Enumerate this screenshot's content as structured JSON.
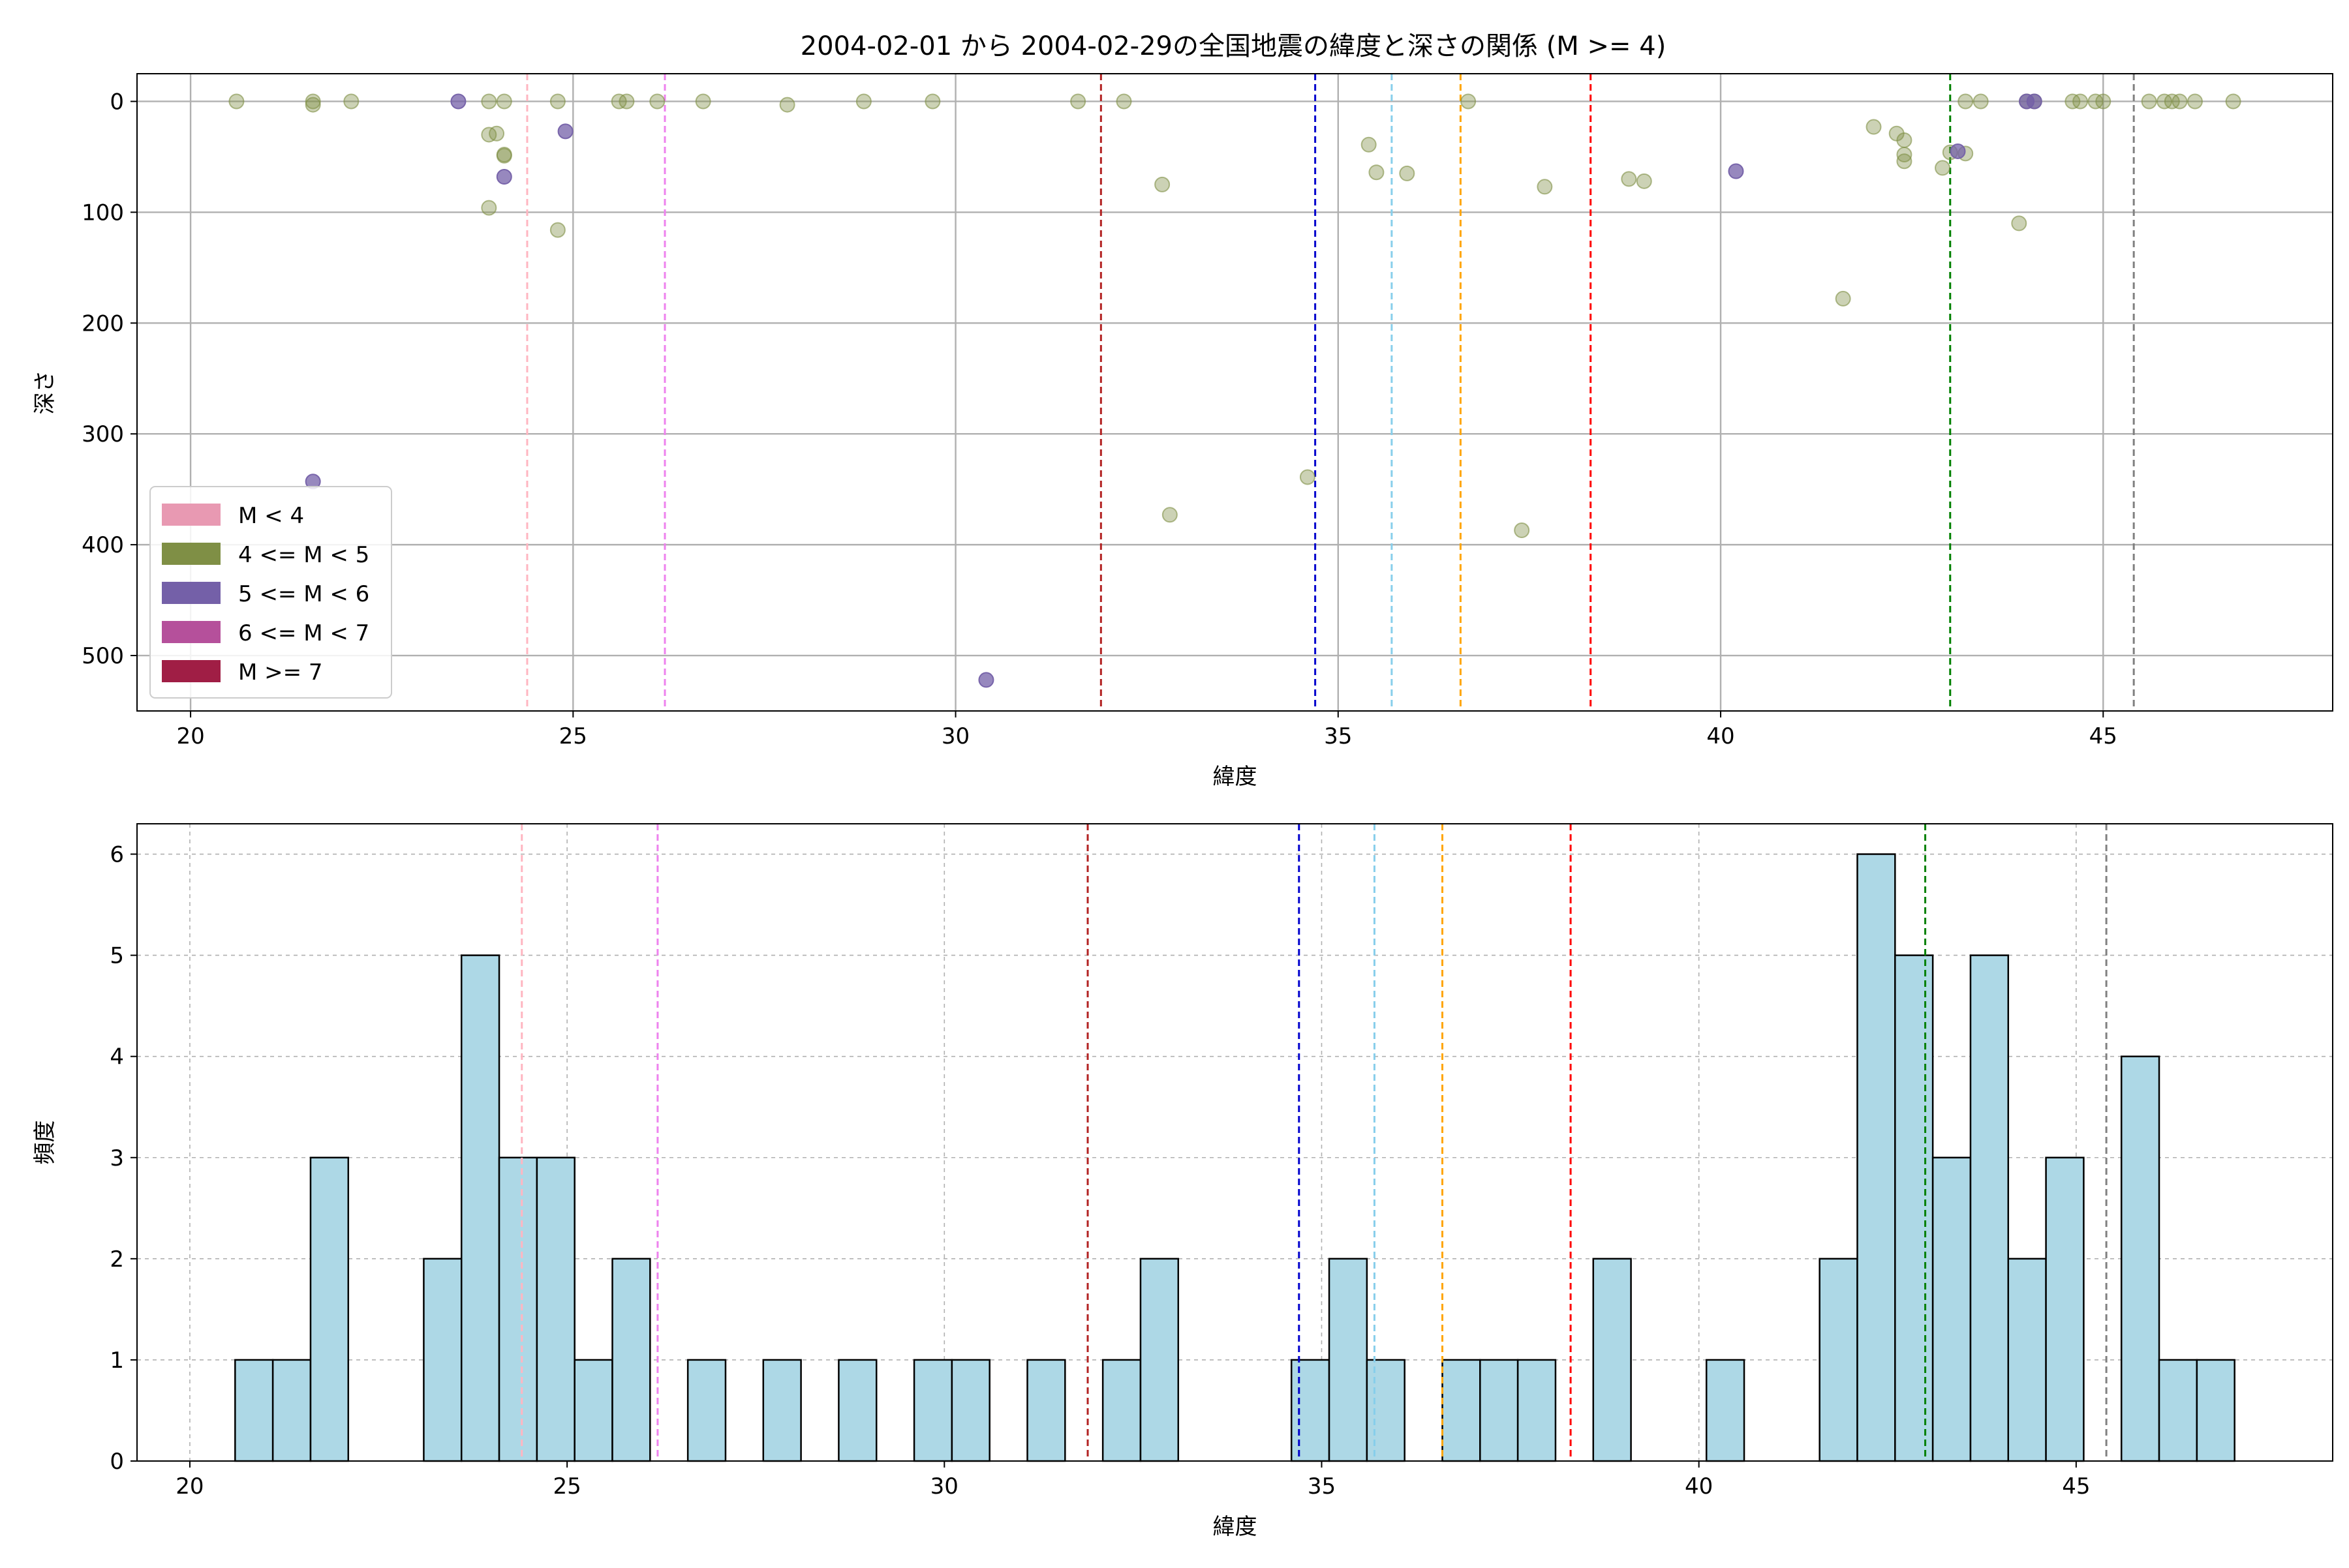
{
  "title": "2004-02-01 から 2004-02-29の全国地震の緯度と深さの関係 (M >= 4)",
  "chart_data": [
    {
      "type": "scatter",
      "title": "2004-02-01 から 2004-02-29の全国地震の緯度と深さの関係 (M >= 4)",
      "xlabel": "緯度",
      "ylabel": "深さ",
      "xlim": [
        19.3,
        48.0
      ],
      "ylim": [
        550,
        -25
      ],
      "y_inverted": true,
      "xticks": [
        20,
        25,
        30,
        35,
        40,
        45
      ],
      "yticks": [
        0,
        100,
        200,
        300,
        400,
        500
      ],
      "grid": true,
      "legend": {
        "placement": "lower-left",
        "entries": [
          {
            "label": "M < 4",
            "color": "#e899b2"
          },
          {
            "label": "4 <= M < 5",
            "color": "#7f8f45"
          },
          {
            "label": "5 <= M < 6",
            "color": "#7460a8"
          },
          {
            "label": "6 <= M < 7",
            "color": "#b5509b"
          },
          {
            "label": "M >= 7",
            "color": "#a01e45"
          }
        ]
      },
      "series": [
        {
          "label": "4 <= M < 5",
          "color": "#7f8f45",
          "alpha": 0.4,
          "points": [
            [
              20.6,
              0
            ],
            [
              21.6,
              0
            ],
            [
              21.6,
              3
            ],
            [
              22.1,
              0
            ],
            [
              23.9,
              0
            ],
            [
              24.1,
              0
            ],
            [
              23.9,
              30
            ],
            [
              24.0,
              29
            ],
            [
              24.1,
              48
            ],
            [
              24.1,
              49
            ],
            [
              23.9,
              96
            ],
            [
              24.8,
              0
            ],
            [
              24.8,
              116
            ],
            [
              25.6,
              0
            ],
            [
              25.7,
              0
            ],
            [
              26.1,
              0
            ],
            [
              26.7,
              0
            ],
            [
              27.8,
              3
            ],
            [
              28.8,
              0
            ],
            [
              29.7,
              0
            ],
            [
              31.6,
              0
            ],
            [
              32.2,
              0
            ],
            [
              32.7,
              75
            ],
            [
              32.8,
              373
            ],
            [
              34.6,
              339
            ],
            [
              35.4,
              39
            ],
            [
              35.5,
              64
            ],
            [
              35.9,
              65
            ],
            [
              36.7,
              0
            ],
            [
              37.4,
              387
            ],
            [
              37.7,
              77
            ],
            [
              38.8,
              70
            ],
            [
              39.0,
              72
            ],
            [
              41.6,
              178
            ],
            [
              42.0,
              23
            ],
            [
              42.3,
              29
            ],
            [
              42.4,
              35
            ],
            [
              42.4,
              48
            ],
            [
              42.4,
              54
            ],
            [
              42.9,
              60
            ],
            [
              43.0,
              46
            ],
            [
              43.2,
              47
            ],
            [
              43.2,
              0
            ],
            [
              43.4,
              0
            ],
            [
              43.9,
              110
            ],
            [
              44.0,
              0
            ],
            [
              44.1,
              0
            ],
            [
              44.6,
              0
            ],
            [
              44.7,
              0
            ],
            [
              44.9,
              0
            ],
            [
              45.0,
              0
            ],
            [
              45.6,
              0
            ],
            [
              45.8,
              0
            ],
            [
              45.9,
              0
            ],
            [
              46.0,
              0
            ],
            [
              46.2,
              0
            ],
            [
              46.7,
              0
            ]
          ]
        },
        {
          "label": "5 <= M < 6",
          "color": "#7460a8",
          "alpha": 0.75,
          "points": [
            [
              21.6,
              343
            ],
            [
              23.5,
              0
            ],
            [
              24.1,
              68
            ],
            [
              24.9,
              27
            ],
            [
              30.4,
              522
            ],
            [
              40.2,
              63
            ],
            [
              43.1,
              45
            ],
            [
              44.0,
              0
            ],
            [
              44.1,
              0
            ]
          ]
        }
      ],
      "vlines": [
        {
          "x": 24.4,
          "color": "#ffb6c1"
        },
        {
          "x": 26.2,
          "color": "#ee82ee"
        },
        {
          "x": 31.9,
          "color": "#b22222"
        },
        {
          "x": 34.7,
          "color": "#0000cd"
        },
        {
          "x": 35.7,
          "color": "#87ceeb"
        },
        {
          "x": 36.6,
          "color": "#ffa500"
        },
        {
          "x": 38.3,
          "color": "#ff0000"
        },
        {
          "x": 43.0,
          "color": "#008000"
        },
        {
          "x": 45.4,
          "color": "#808080"
        }
      ]
    },
    {
      "type": "bar",
      "xlabel": "緯度",
      "ylabel": "頻度",
      "xlim": [
        19.3,
        48.4
      ],
      "ylim": [
        0,
        6.3
      ],
      "xticks": [
        20,
        25,
        30,
        35,
        40,
        45
      ],
      "yticks": [
        0,
        1,
        2,
        3,
        4,
        5,
        6
      ],
      "grid": true,
      "bar_color": "#add8e6",
      "bin_width": 0.5,
      "bins": [
        [
          20.6,
          1
        ],
        [
          21.1,
          1
        ],
        [
          21.6,
          3
        ],
        [
          23.1,
          2
        ],
        [
          23.6,
          5
        ],
        [
          24.1,
          3
        ],
        [
          24.6,
          3
        ],
        [
          25.1,
          1
        ],
        [
          25.6,
          2
        ],
        [
          26.6,
          1
        ],
        [
          27.6,
          1
        ],
        [
          28.6,
          1
        ],
        [
          29.6,
          1
        ],
        [
          30.1,
          1
        ],
        [
          31.1,
          1
        ],
        [
          32.1,
          1
        ],
        [
          32.6,
          2
        ],
        [
          34.6,
          1
        ],
        [
          35.1,
          2
        ],
        [
          35.6,
          1
        ],
        [
          36.6,
          1
        ],
        [
          37.1,
          1
        ],
        [
          37.6,
          1
        ],
        [
          38.6,
          2
        ],
        [
          40.1,
          1
        ],
        [
          41.6,
          2
        ],
        [
          42.1,
          6
        ],
        [
          42.6,
          5
        ],
        [
          43.1,
          3
        ],
        [
          43.6,
          5
        ],
        [
          44.1,
          2
        ],
        [
          44.6,
          3
        ],
        [
          45.6,
          4
        ],
        [
          46.1,
          1
        ],
        [
          46.6,
          1
        ]
      ],
      "vlines": [
        {
          "x": 24.4,
          "color": "#ffb6c1"
        },
        {
          "x": 26.2,
          "color": "#ee82ee"
        },
        {
          "x": 31.9,
          "color": "#b22222"
        },
        {
          "x": 34.7,
          "color": "#0000cd"
        },
        {
          "x": 35.7,
          "color": "#87ceeb"
        },
        {
          "x": 36.6,
          "color": "#ffa500"
        },
        {
          "x": 38.3,
          "color": "#ff0000"
        },
        {
          "x": 43.0,
          "color": "#008000"
        },
        {
          "x": 45.4,
          "color": "#808080"
        }
      ]
    }
  ]
}
